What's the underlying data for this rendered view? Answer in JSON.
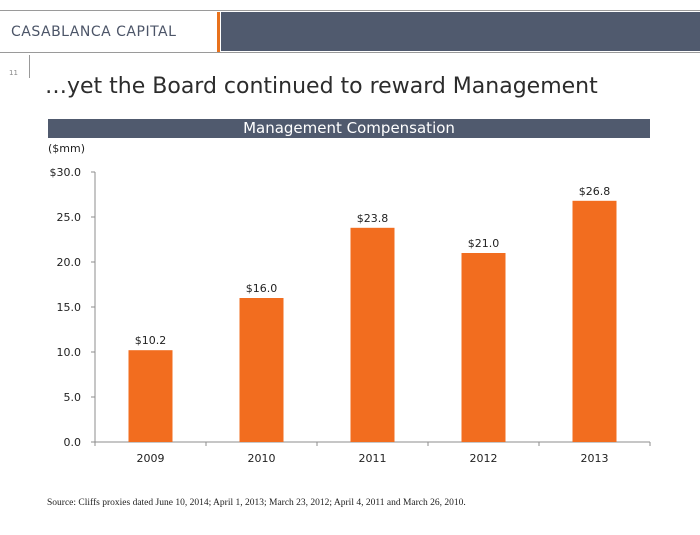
{
  "header": {
    "brand": "CASABLANCA CAPITAL",
    "page_number": "11",
    "accent_color": "#e8711c",
    "navy_color": "#505a6e"
  },
  "slide": {
    "title": "…yet the Board continued to reward Management",
    "source": "Source:  Cliffs proxies dated June 10, 2014; April 1, 2013; March 23, 2012; April 4, 2011 and March 26, 2010."
  },
  "chart_data": {
    "type": "bar",
    "title": "Management Compensation",
    "ylabel": "($mm)",
    "xlabel": "",
    "categories": [
      "2009",
      "2010",
      "2011",
      "2012",
      "2013"
    ],
    "values": [
      10.2,
      16.0,
      23.8,
      21.0,
      26.8
    ],
    "data_labels": [
      "$10.2",
      "$16.0",
      "$23.8",
      "$21.0",
      "$26.8"
    ],
    "ylim": [
      0,
      30
    ],
    "yticks": [
      0,
      5,
      10,
      15,
      20,
      25,
      30
    ],
    "ytick_labels": [
      "0.0",
      "5.0",
      "10.0",
      "15.0",
      "20.0",
      "25.0",
      "$30.0"
    ],
    "bar_color": "#f26d1f",
    "grid": false,
    "legend": "none"
  }
}
